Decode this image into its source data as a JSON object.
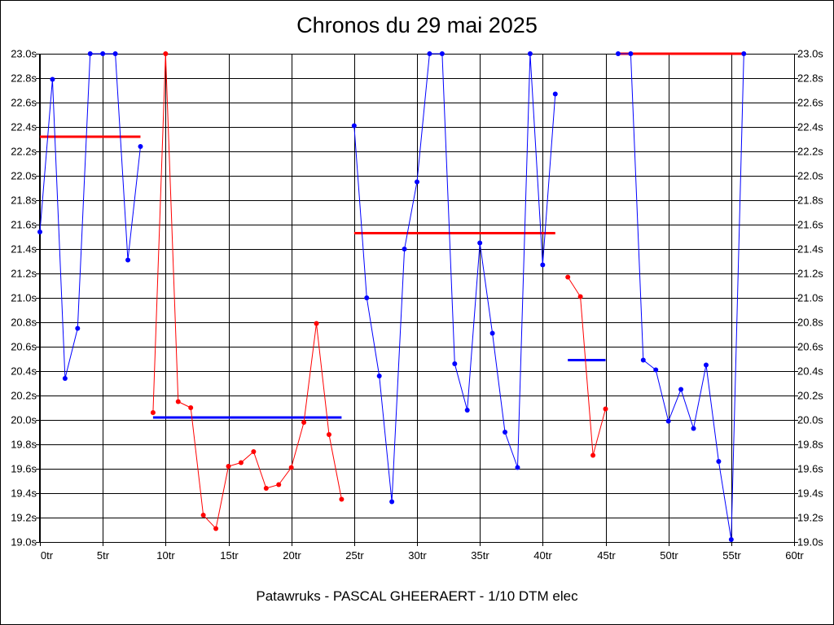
{
  "chart_data": {
    "type": "line",
    "title": "Chronos du 29 mai 2025",
    "subtitle": "Patawruks - PASCAL GHEERAERT - 1/10 DTM elec",
    "xlim": [
      0,
      60
    ],
    "ylim": [
      19.0,
      23.0
    ],
    "x_ticks": [
      0,
      5,
      10,
      15,
      20,
      25,
      30,
      35,
      40,
      45,
      50,
      55,
      60
    ],
    "x_tick_labels": [
      "0tr",
      "5tr",
      "10tr",
      "15tr",
      "20tr",
      "25tr",
      "30tr",
      "35tr",
      "40tr",
      "45tr",
      "50tr",
      "55tr",
      "60tr"
    ],
    "y_ticks": [
      19.0,
      19.2,
      19.4,
      19.6,
      19.8,
      20.0,
      20.2,
      20.4,
      20.6,
      20.8,
      21.0,
      21.2,
      21.4,
      21.6,
      21.8,
      22.0,
      22.2,
      22.4,
      22.6,
      22.8,
      23.0
    ],
    "y_tick_labels": [
      "19.0s",
      "19.2s",
      "19.4s",
      "19.6s",
      "19.8s",
      "20.0s",
      "20.2s",
      "20.4s",
      "20.6s",
      "20.8s",
      "21.0s",
      "21.2s",
      "21.4s",
      "21.6s",
      "21.8s",
      "22.0s",
      "22.2s",
      "22.4s",
      "22.6s",
      "22.8s",
      "23.0s"
    ],
    "grid": true,
    "y_axis_right": true,
    "series": [
      {
        "color": "#0000ff",
        "x": [
          0,
          1,
          2,
          3,
          4,
          5,
          6,
          7,
          8
        ],
        "y": [
          21.54,
          22.79,
          20.34,
          20.75,
          23.0,
          23.0,
          23.0,
          21.31,
          22.24
        ]
      },
      {
        "color": "#ff0000",
        "x": [
          9,
          10,
          11,
          12,
          13,
          14,
          15,
          16,
          17,
          18,
          19,
          20,
          21,
          22,
          23,
          24
        ],
        "y": [
          20.06,
          23.0,
          20.15,
          20.1,
          19.22,
          19.11,
          19.62,
          19.65,
          19.74,
          19.44,
          19.47,
          19.61,
          19.98,
          20.79,
          19.88,
          19.35
        ]
      },
      {
        "color": "#0000ff",
        "x": [
          25,
          26,
          27,
          28,
          29,
          30,
          31,
          32,
          33,
          34,
          35,
          36,
          37,
          38,
          39,
          40,
          41
        ],
        "y": [
          22.41,
          21.0,
          20.36,
          19.33,
          21.4,
          21.95,
          23.0,
          23.0,
          20.46,
          20.08,
          21.45,
          20.71,
          19.9,
          19.61,
          23.0,
          21.27,
          22.67
        ]
      },
      {
        "color": "#ff0000",
        "x": [
          42,
          43,
          44,
          45
        ],
        "y": [
          21.17,
          21.01,
          19.71,
          20.09
        ]
      },
      {
        "color": "#0000ff",
        "x": [
          46,
          47,
          48,
          49,
          50,
          51,
          52,
          53,
          54,
          55,
          56
        ],
        "y": [
          23.0,
          23.0,
          20.49,
          20.41,
          19.99,
          20.25,
          19.93,
          20.45,
          19.66,
          19.02,
          23.0
        ]
      }
    ],
    "averages": [
      {
        "color": "#ff0000",
        "x": [
          0,
          8
        ],
        "y": 22.32
      },
      {
        "color": "#0000ff",
        "x": [
          9,
          24
        ],
        "y": 20.02
      },
      {
        "color": "#ff0000",
        "x": [
          25,
          41
        ],
        "y": 21.53
      },
      {
        "color": "#0000ff",
        "x": [
          42,
          45
        ],
        "y": 20.49
      },
      {
        "color": "#ff0000",
        "x": [
          46,
          56
        ],
        "y": 23.0
      }
    ]
  }
}
